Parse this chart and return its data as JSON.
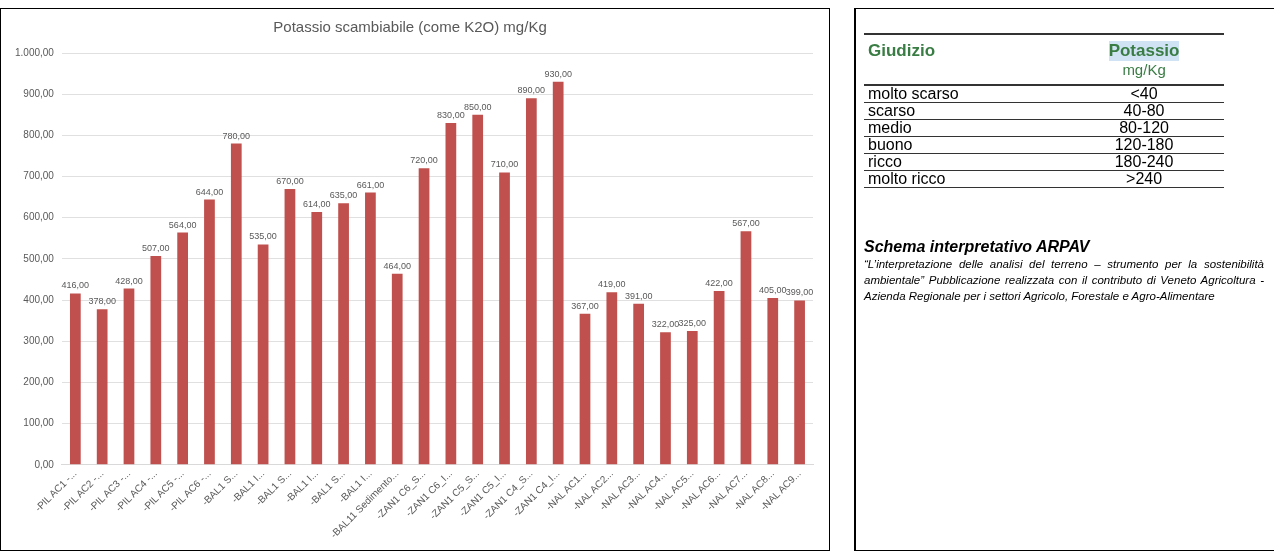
{
  "chart_data": [
    {
      "type": "bar",
      "title": "Potassio scambiabile (come K2O) mg/Kg",
      "categories": [
        "-PIL AC1 -...",
        "-PIL AC2 -...",
        "-PIL AC3 -...",
        "-PIL AC4 -...",
        "-PIL AC5 -...",
        "-PIL AC6 -...",
        "-BAL1 S...",
        "-BAL1 I...",
        "-BAL1 S...",
        "-BAL1 I...",
        "-BAL1 S...",
        "-BAL1 I...",
        "-BAL11 Sedimento...",
        "-ZAN1 C6_S...",
        "-ZAN1 C6_I...",
        "-ZAN1 C5_S...",
        "-ZAN1 C5_I...",
        "-ZAN1 C4_S...",
        "-ZAN1 C4_I...",
        "-NAL AC1...",
        "-NAL AC2...",
        "-NAL AC3...",
        "-NAL AC4...",
        "-NAL AC5...",
        "-NAL AC6...",
        "-NAL AC7...",
        "-NAL AC8...",
        "-NAL AC9..."
      ],
      "values": [
        416,
        378,
        428,
        507,
        564,
        644,
        780,
        535,
        670,
        614,
        635,
        661,
        464,
        720,
        830,
        850,
        710,
        890,
        930,
        367,
        419,
        391,
        322,
        325,
        422,
        567,
        405,
        399
      ],
      "color": "#c0504d",
      "ylim": [
        0,
        1000
      ],
      "yticks": [
        {
          "value": 0,
          "label": "0,00"
        },
        {
          "value": 100,
          "label": "100,00"
        },
        {
          "value": 200,
          "label": "200,00"
        },
        {
          "value": 300,
          "label": "300,00"
        },
        {
          "value": 400,
          "label": "400,00"
        },
        {
          "value": 500,
          "label": "500,00"
        },
        {
          "value": 600,
          "label": "600,00"
        },
        {
          "value": 700,
          "label": "700,00"
        },
        {
          "value": 800,
          "label": "800,00"
        },
        {
          "value": 900,
          "label": "900,00"
        },
        {
          "value": 1000,
          "label": "1.000,00"
        }
      ],
      "value_labels": [
        "416,00",
        "378,00",
        "428,00",
        "507,00",
        "564,00",
        "644,00",
        "780,00",
        "535,00",
        "670,00",
        "614,00",
        "635,00",
        "661,00",
        "464,00",
        "720,00",
        "830,00",
        "850,00",
        "710,00",
        "890,00",
        "930,00",
        "367,00",
        "419,00",
        "391,00",
        "322,00",
        "325,00",
        "422,00",
        "567,00",
        "405,00",
        "399,00"
      ],
      "grid": "y",
      "legend": false
    },
    {
      "type": "other",
      "title": "Schema interpretativo ARPAV",
      "subtitle": "“L’interpretazione delle analisi del terreno – strumento per la sostenibilità ambientale” Pubblicazione realizzata con il contributo di Veneto Agricoltura - Azienda Regionale per i settori Agricolo, Forestale e Agro-Alimentare",
      "annotations": [
        "Giudizio",
        "Potassio",
        "mg/Kg",
        "molto scarso",
        "<40",
        "scarso",
        "40-80",
        "medio",
        "80-120",
        "buono",
        "120-180",
        "ricco",
        "180-240",
        "molto ricco",
        ">240"
      ]
    }
  ]
}
